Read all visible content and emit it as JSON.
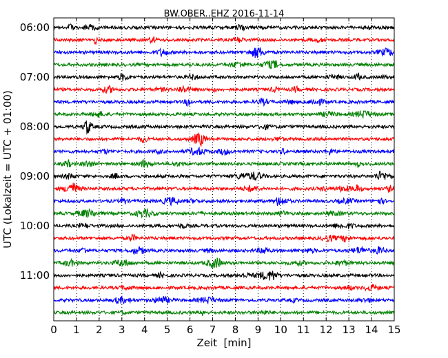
{
  "chart_data": {
    "type": "line",
    "title": "BW.OBER..EHZ 2016-11-14",
    "xlabel": "Zeit  [min]",
    "ylabel": "UTC (Lokalzeit = UTC + 01:00)",
    "xlim": [
      0,
      15
    ],
    "x_ticks": [
      0,
      1,
      2,
      3,
      4,
      5,
      6,
      7,
      8,
      9,
      10,
      11,
      12,
      13,
      14,
      15
    ],
    "x_tick_labels": [
      "0",
      "1",
      "2",
      "3",
      "4",
      "5",
      "6",
      "7",
      "8",
      "9",
      "10",
      "11",
      "12",
      "13",
      "14",
      "15"
    ],
    "y_tick_labels": [
      "06:00",
      "07:00",
      "08:00",
      "09:00",
      "10:00",
      "11:00"
    ],
    "grid": "vertical dotted",
    "trace_interval_min": 15,
    "color_cycle": [
      "#000000",
      "#ff0000",
      "#0000ff",
      "#008000"
    ],
    "series": [
      {
        "start": "06:00",
        "color": "#000000"
      },
      {
        "start": "06:15",
        "color": "#ff0000"
      },
      {
        "start": "06:30",
        "color": "#0000ff"
      },
      {
        "start": "06:45",
        "color": "#008000"
      },
      {
        "start": "07:00",
        "color": "#000000"
      },
      {
        "start": "07:15",
        "color": "#ff0000"
      },
      {
        "start": "07:30",
        "color": "#0000ff"
      },
      {
        "start": "07:45",
        "color": "#008000"
      },
      {
        "start": "08:00",
        "color": "#000000"
      },
      {
        "start": "08:15",
        "color": "#ff0000"
      },
      {
        "start": "08:30",
        "color": "#0000ff"
      },
      {
        "start": "08:45",
        "color": "#008000"
      },
      {
        "start": "09:00",
        "color": "#000000"
      },
      {
        "start": "09:15",
        "color": "#ff0000"
      },
      {
        "start": "09:30",
        "color": "#0000ff"
      },
      {
        "start": "09:45",
        "color": "#008000"
      },
      {
        "start": "10:00",
        "color": "#000000"
      },
      {
        "start": "10:15",
        "color": "#ff0000"
      },
      {
        "start": "10:30",
        "color": "#0000ff"
      },
      {
        "start": "10:45",
        "color": "#008000"
      },
      {
        "start": "11:00",
        "color": "#000000"
      },
      {
        "start": "11:15",
        "color": "#ff0000"
      },
      {
        "start": "11:30",
        "color": "#0000ff"
      },
      {
        "start": "11:45",
        "color": "#008000"
      }
    ]
  }
}
